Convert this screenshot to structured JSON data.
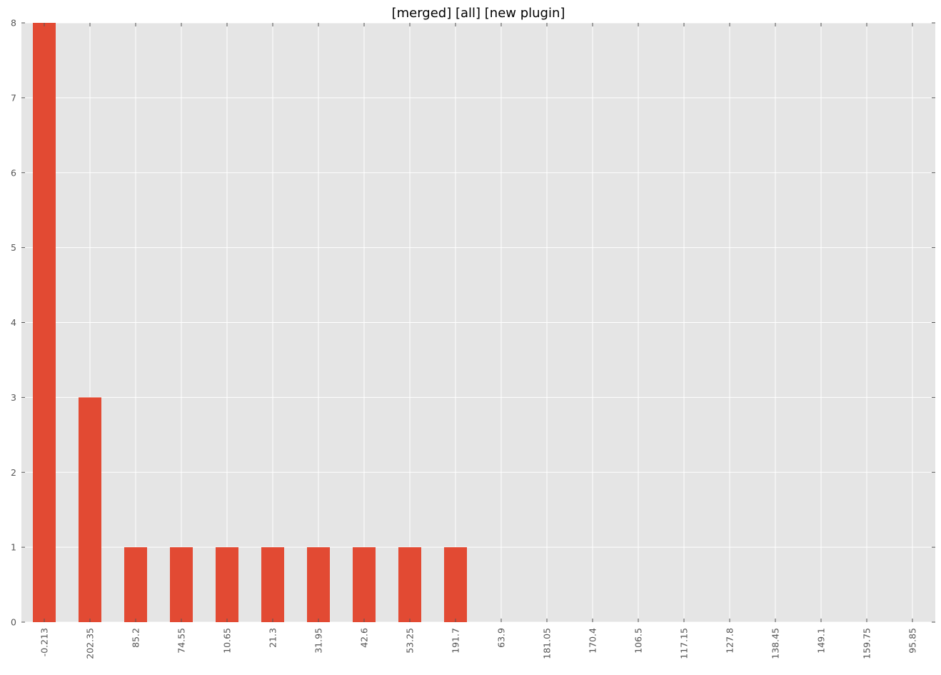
{
  "chart_data": {
    "type": "bar",
    "title": "[merged] [all] [new plugin]",
    "xlabel": "",
    "ylabel": "",
    "categories": [
      "-0.213",
      "202.35",
      "85.2",
      "74.55",
      "10.65",
      "21.3",
      "31.95",
      "42.6",
      "53.25",
      "191.7",
      "63.9",
      "181.05",
      "170.4",
      "106.5",
      "117.15",
      "127.8",
      "138.45",
      "149.1",
      "159.75",
      "95.85"
    ],
    "values": [
      8,
      3,
      1,
      1,
      1,
      1,
      1,
      1,
      1,
      1,
      0,
      0,
      0,
      0,
      0,
      0,
      0,
      0,
      0,
      0
    ],
    "ylim": [
      0,
      8
    ],
    "yticks": [
      0,
      1,
      2,
      3,
      4,
      5,
      6,
      7,
      8
    ],
    "grid": true,
    "legend": "none",
    "colors": {
      "bar": "#E24A33",
      "plot_background": "#E5E5E5",
      "grid": "#FFFFFF",
      "tick_text": "#555555"
    }
  }
}
